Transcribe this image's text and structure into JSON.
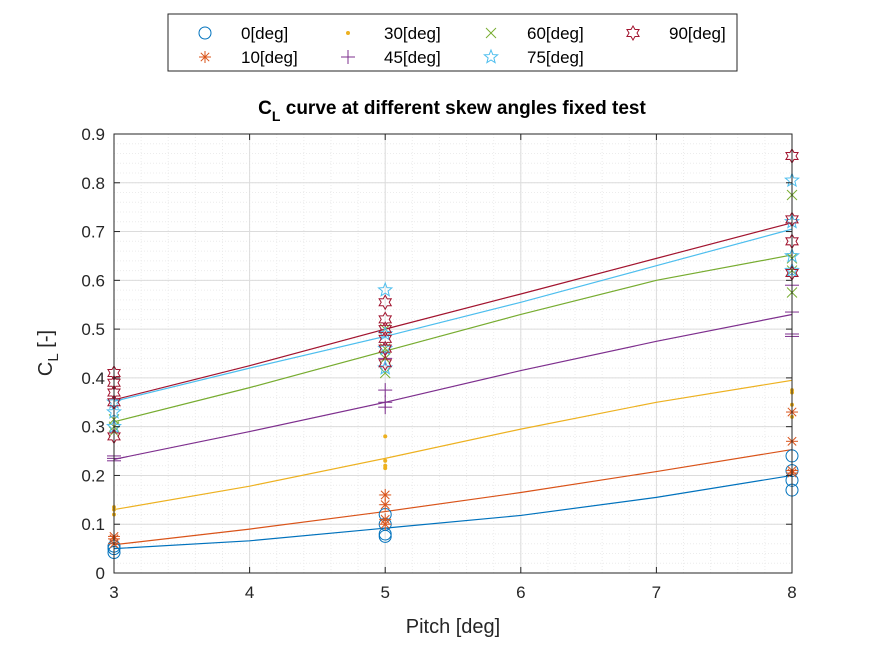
{
  "chart_data": {
    "type": "scatter",
    "title": "C",
    "title_subscript": "L",
    "title_rest": " curve at different skew angles fixed test",
    "xlabel": "Pitch [deg]",
    "ylabel": "C",
    "ylabel_subscript": "L",
    "ylabel_rest": " [-]",
    "xlim": [
      3,
      8
    ],
    "ylim": [
      0,
      0.9
    ],
    "xticks": [
      "3",
      "4",
      "5",
      "6",
      "7",
      "8"
    ],
    "yticks": [
      "0",
      "0.1",
      "0.2",
      "0.3",
      "0.4",
      "0.5",
      "0.6",
      "0.7",
      "0.8",
      "0.9"
    ],
    "grid": true,
    "minor_grid": true,
    "legend_position": "top (outside plot)",
    "series": [
      {
        "name": "0[deg]",
        "color": "#0072BD",
        "marker": "circle",
        "points": [
          [
            3,
            0.042
          ],
          [
            3,
            0.05
          ],
          [
            3,
            0.055
          ],
          [
            5,
            0.075
          ],
          [
            5,
            0.08
          ],
          [
            5,
            0.1
          ],
          [
            5,
            0.12
          ],
          [
            8,
            0.17
          ],
          [
            8,
            0.19
          ],
          [
            8,
            0.21
          ],
          [
            8,
            0.24
          ]
        ],
        "fit": [
          [
            3,
            0.05
          ],
          [
            4,
            0.066
          ],
          [
            5,
            0.092
          ],
          [
            6,
            0.118
          ],
          [
            7,
            0.155
          ],
          [
            8,
            0.2
          ]
        ]
      },
      {
        "name": "10[deg]",
        "color": "#D95319",
        "marker": "asterisk",
        "points": [
          [
            3,
            0.06
          ],
          [
            3,
            0.07
          ],
          [
            3,
            0.075
          ],
          [
            5,
            0.1
          ],
          [
            5,
            0.11
          ],
          [
            5,
            0.14
          ],
          [
            5,
            0.16
          ],
          [
            8,
            0.205
          ],
          [
            8,
            0.21
          ],
          [
            8,
            0.27
          ],
          [
            8,
            0.33
          ]
        ],
        "fit": [
          [
            3,
            0.058
          ],
          [
            4,
            0.09
          ],
          [
            5,
            0.126
          ],
          [
            6,
            0.165
          ],
          [
            7,
            0.208
          ],
          [
            8,
            0.253
          ]
        ]
      },
      {
        "name": "30[deg]",
        "color": "#EDB120",
        "marker": "point",
        "points": [
          [
            3,
            0.12
          ],
          [
            3,
            0.13
          ],
          [
            3,
            0.135
          ],
          [
            5,
            0.215
          ],
          [
            5,
            0.22
          ],
          [
            5,
            0.23
          ],
          [
            5,
            0.28
          ],
          [
            8,
            0.32
          ],
          [
            8,
            0.345
          ],
          [
            8,
            0.37
          ],
          [
            8,
            0.375
          ]
        ],
        "fit": [
          [
            3,
            0.13
          ],
          [
            4,
            0.178
          ],
          [
            5,
            0.235
          ],
          [
            6,
            0.295
          ],
          [
            7,
            0.35
          ],
          [
            8,
            0.395
          ]
        ]
      },
      {
        "name": "45[deg]",
        "color": "#7E2F8E",
        "marker": "plus",
        "points": [
          [
            3,
            0.23
          ],
          [
            3,
            0.235
          ],
          [
            3,
            0.24
          ],
          [
            5,
            0.34
          ],
          [
            5,
            0.35
          ],
          [
            5,
            0.375
          ],
          [
            5,
            0.44
          ],
          [
            8,
            0.485
          ],
          [
            8,
            0.49
          ],
          [
            8,
            0.535
          ],
          [
            8,
            0.59
          ]
        ],
        "fit": [
          [
            3,
            0.233
          ],
          [
            4,
            0.29
          ],
          [
            5,
            0.35
          ],
          [
            6,
            0.415
          ],
          [
            7,
            0.475
          ],
          [
            8,
            0.53
          ]
        ]
      },
      {
        "name": "60[deg]",
        "color": "#77AC30",
        "marker": "cross",
        "points": [
          [
            3,
            0.29
          ],
          [
            3,
            0.3
          ],
          [
            3,
            0.315
          ],
          [
            5,
            0.41
          ],
          [
            5,
            0.44
          ],
          [
            5,
            0.46
          ],
          [
            5,
            0.5
          ],
          [
            8,
            0.575
          ],
          [
            8,
            0.62
          ],
          [
            8,
            0.645
          ],
          [
            8,
            0.775
          ]
        ],
        "fit": [
          [
            3,
            0.31
          ],
          [
            4,
            0.38
          ],
          [
            5,
            0.455
          ],
          [
            6,
            0.53
          ],
          [
            7,
            0.6
          ],
          [
            8,
            0.652
          ]
        ]
      },
      {
        "name": "75[deg]",
        "color": "#4DBEEE",
        "marker": "pentagram",
        "points": [
          [
            3,
            0.3
          ],
          [
            3,
            0.33
          ],
          [
            3,
            0.35
          ],
          [
            5,
            0.42
          ],
          [
            5,
            0.46
          ],
          [
            5,
            0.49
          ],
          [
            5,
            0.58
          ],
          [
            8,
            0.62
          ],
          [
            8,
            0.65
          ],
          [
            8,
            0.72
          ],
          [
            8,
            0.805
          ]
        ],
        "fit": [
          [
            3,
            0.352
          ],
          [
            4,
            0.42
          ],
          [
            5,
            0.485
          ],
          [
            6,
            0.555
          ],
          [
            7,
            0.63
          ],
          [
            8,
            0.705
          ]
        ]
      },
      {
        "name": "90[deg]",
        "color": "#A2142F",
        "marker": "hexagram",
        "points": [
          [
            3,
            0.28
          ],
          [
            3,
            0.35
          ],
          [
            3,
            0.37
          ],
          [
            3,
            0.39
          ],
          [
            3,
            0.41
          ],
          [
            5,
            0.43
          ],
          [
            5,
            0.46
          ],
          [
            5,
            0.48
          ],
          [
            5,
            0.5
          ],
          [
            5,
            0.52
          ],
          [
            5,
            0.555
          ],
          [
            8,
            0.615
          ],
          [
            8,
            0.68
          ],
          [
            8,
            0.725
          ],
          [
            8,
            0.855
          ]
        ],
        "fit": [
          [
            3,
            0.355
          ],
          [
            4,
            0.425
          ],
          [
            5,
            0.5
          ],
          [
            6,
            0.572
          ],
          [
            7,
            0.645
          ],
          [
            8,
            0.718
          ]
        ]
      }
    ]
  }
}
